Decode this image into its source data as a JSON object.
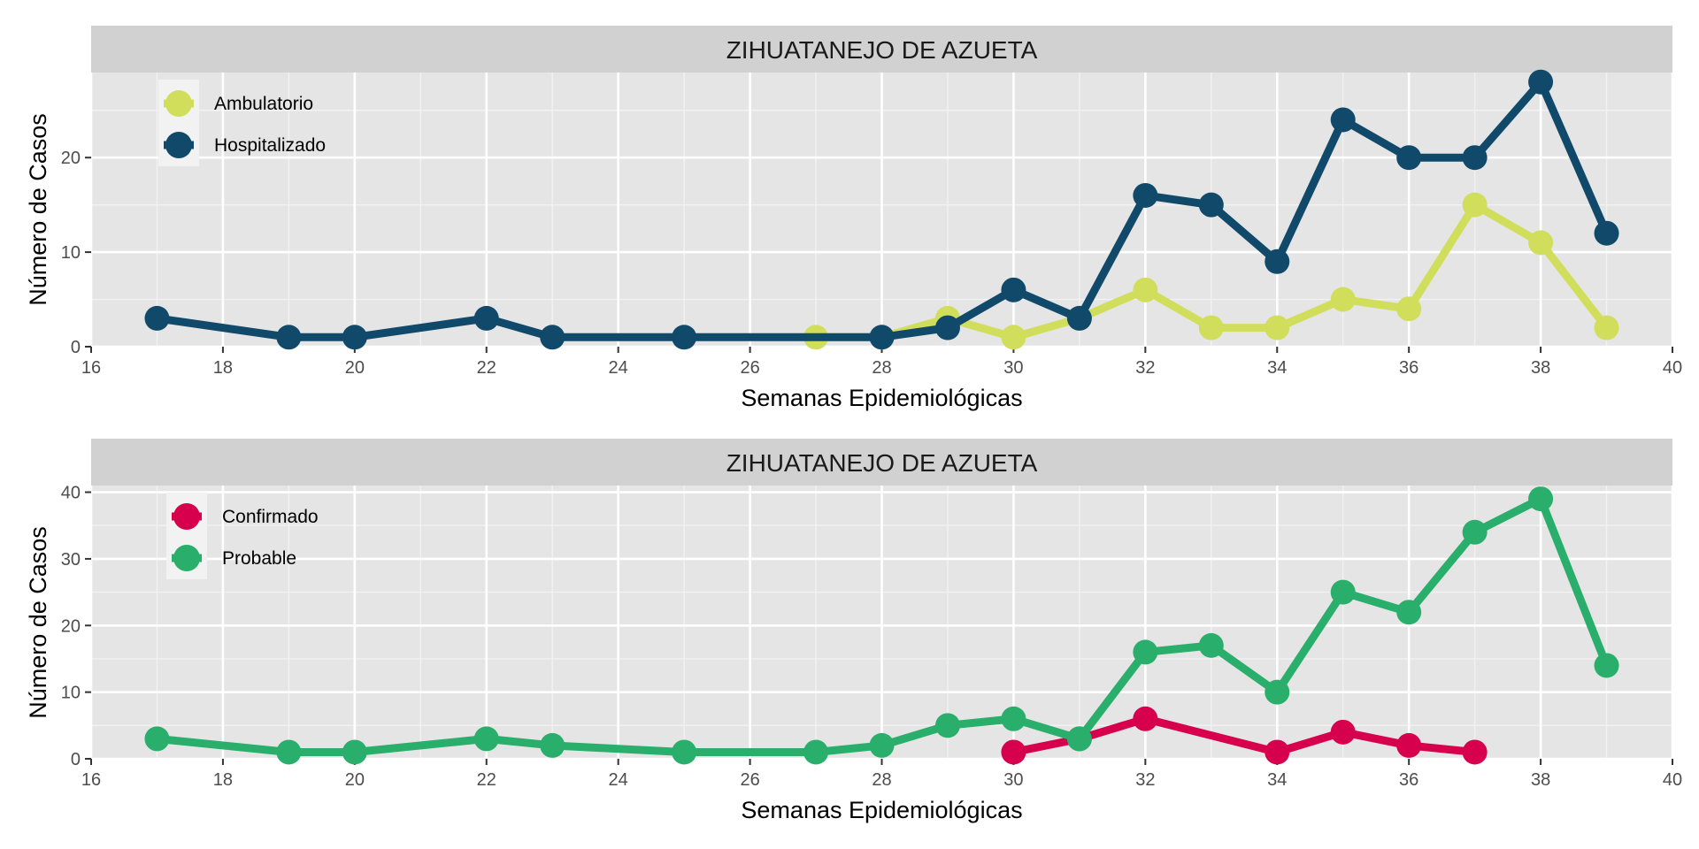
{
  "chart_data": [
    {
      "type": "line",
      "title": "ZIHUATANEJO DE AZUETA",
      "xlabel": "Semanas Epidemiológicas",
      "ylabel": "Número de Casos",
      "xlim": [
        16,
        40
      ],
      "ylim": [
        0,
        29
      ],
      "x_ticks": [
        16,
        18,
        20,
        22,
        24,
        26,
        28,
        30,
        32,
        34,
        36,
        38,
        40
      ],
      "y_ticks": [
        0,
        10,
        20
      ],
      "grid": true,
      "legend_position": "top-left",
      "series": [
        {
          "name": "Ambulatorio",
          "color": "#d1de5c",
          "x": [
            27,
            28,
            29,
            30,
            31,
            32,
            33,
            34,
            35,
            36,
            37,
            38,
            39
          ],
          "y": [
            1,
            1,
            3,
            1,
            3,
            6,
            2,
            2,
            5,
            4,
            15,
            11,
            2
          ]
        },
        {
          "name": "Hospitalizado",
          "color": "#11496a",
          "x": [
            17,
            19,
            20,
            22,
            23,
            25,
            28,
            29,
            30,
            31,
            32,
            33,
            34,
            35,
            36,
            37,
            38,
            39
          ],
          "y": [
            3,
            1,
            1,
            3,
            1,
            1,
            1,
            2,
            6,
            3,
            16,
            15,
            9,
            24,
            20,
            20,
            28,
            12
          ]
        }
      ]
    },
    {
      "type": "line",
      "title": "ZIHUATANEJO DE AZUETA",
      "xlabel": "Semanas Epidemiológicas",
      "ylabel": "Número de Casos",
      "xlim": [
        16,
        40
      ],
      "ylim": [
        0,
        41
      ],
      "x_ticks": [
        16,
        18,
        20,
        22,
        24,
        26,
        28,
        30,
        32,
        34,
        36,
        38,
        40
      ],
      "y_ticks": [
        0,
        10,
        20,
        30,
        40
      ],
      "grid": true,
      "legend_position": "top-left",
      "series": [
        {
          "name": "Confirmado",
          "color": "#d6004c",
          "x": [
            30,
            31,
            32,
            34,
            35,
            36,
            37
          ],
          "y": [
            1,
            3,
            6,
            1,
            4,
            2,
            1
          ]
        },
        {
          "name": "Probable",
          "color": "#2aae6b",
          "x": [
            17,
            19,
            20,
            22,
            23,
            25,
            27,
            28,
            29,
            30,
            31,
            32,
            33,
            34,
            35,
            36,
            37,
            38,
            39
          ],
          "y": [
            3,
            1,
            1,
            3,
            2,
            1,
            1,
            2,
            5,
            6,
            3,
            16,
            17,
            10,
            25,
            22,
            34,
            39,
            14
          ]
        }
      ]
    }
  ]
}
